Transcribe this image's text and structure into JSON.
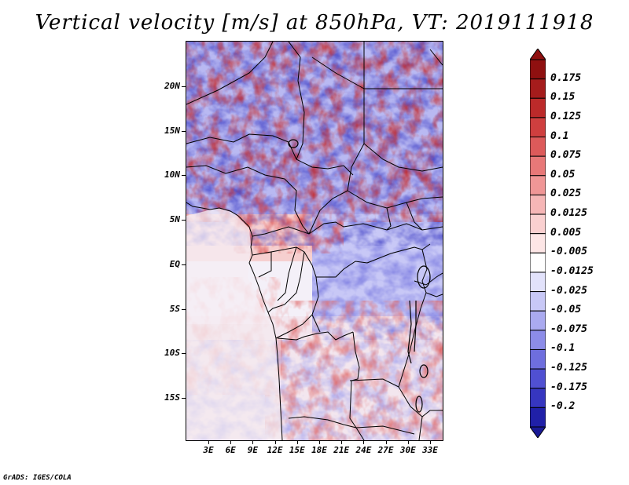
{
  "title": "Vertical velocity [m/s] at 850hPa, VT: 2019111918",
  "credit": "GrADS: IGES/COLA",
  "map": {
    "lat_labels": [
      {
        "text": "20N",
        "lat": 20
      },
      {
        "text": "15N",
        "lat": 15
      },
      {
        "text": "10N",
        "lat": 10
      },
      {
        "text": "5N",
        "lat": 5
      },
      {
        "text": "EQ",
        "lat": 0
      },
      {
        "text": "5S",
        "lat": -5
      },
      {
        "text": "10S",
        "lat": -10
      },
      {
        "text": "15S",
        "lat": -15
      }
    ],
    "lon_labels": [
      {
        "text": "3E",
        "lon": 3
      },
      {
        "text": "6E",
        "lon": 6
      },
      {
        "text": "9E",
        "lon": 9
      },
      {
        "text": "12E",
        "lon": 12
      },
      {
        "text": "15E",
        "lon": 15
      },
      {
        "text": "18E",
        "lon": 18
      },
      {
        "text": "21E",
        "lon": 21
      },
      {
        "text": "24E",
        "lon": 24
      },
      {
        "text": "27E",
        "lon": 27
      },
      {
        "text": "30E",
        "lon": 30
      },
      {
        "text": "33E",
        "lon": 33
      }
    ]
  },
  "colorbar": {
    "levels": [
      {
        "label": "0.175",
        "color": "#a51c1c"
      },
      {
        "label": "0.15",
        "color": "#bc2a2a"
      },
      {
        "label": "0.125",
        "color": "#cf3f3f"
      },
      {
        "label": "0.1",
        "color": "#dd5a5a"
      },
      {
        "label": "0.075",
        "color": "#e87878"
      },
      {
        "label": "0.05",
        "color": "#f09696"
      },
      {
        "label": "0.025",
        "color": "#f6b6b6"
      },
      {
        "label": "0.0125",
        "color": "#fad0d0"
      },
      {
        "label": "0.005",
        "color": "#fde6e6"
      },
      {
        "label": "-0.005",
        "color": "#ffffff"
      },
      {
        "label": "-0.0125",
        "color": "#e2e2fb"
      },
      {
        "label": "-0.025",
        "color": "#c8c8f6"
      },
      {
        "label": "-0.05",
        "color": "#aaaaf0"
      },
      {
        "label": "-0.075",
        "color": "#8c8ce8"
      },
      {
        "label": "-0.1",
        "color": "#6e6ede"
      },
      {
        "label": "-0.125",
        "color": "#5050d2"
      },
      {
        "label": "-0.175",
        "color": "#3636c0"
      },
      {
        "label": "-0.2",
        "color": "#2020a8"
      }
    ],
    "top_color": "#8f1010",
    "bottom_color": "#1a1a96"
  }
}
